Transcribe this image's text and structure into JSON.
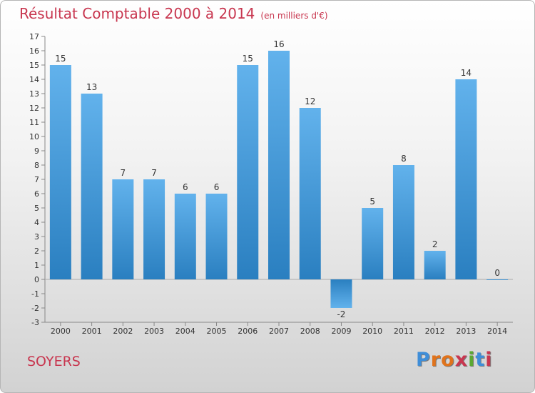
{
  "title": "Résultat Comptable 2000 à 2014",
  "subtitle": "(en milliers d'€)",
  "commune": "SOYERS",
  "logo": {
    "letters": [
      "P",
      "r",
      "o",
      "x",
      "i",
      "t",
      "i"
    ],
    "colors": [
      "#3f8ed8",
      "#e0731c",
      "#e0731c",
      "#c8364f",
      "#5aa832",
      "#3f8ed8",
      "#c8364f"
    ]
  },
  "colors": {
    "bar_light": "#62b2ec",
    "bar_dark": "#2a7fc0",
    "title": "#c8364f"
  },
  "chart_data": {
    "type": "bar",
    "title": "Résultat Comptable 2000 à 2014",
    "ylabel": "en milliers d'€",
    "xlabel": "",
    "categories": [
      "2000",
      "2001",
      "2002",
      "2003",
      "2004",
      "2005",
      "2006",
      "2007",
      "2008",
      "2009",
      "2010",
      "2011",
      "2012",
      "2013",
      "2014"
    ],
    "values": [
      15,
      13,
      7,
      7,
      6,
      6,
      15,
      16,
      12,
      -2,
      5,
      8,
      2,
      14,
      0
    ],
    "ylim": [
      -3,
      17
    ],
    "yticks": [
      -3,
      -2,
      -1,
      0,
      1,
      2,
      3,
      4,
      5,
      6,
      7,
      8,
      9,
      10,
      11,
      12,
      13,
      14,
      15,
      16,
      17
    ],
    "grid": false
  }
}
